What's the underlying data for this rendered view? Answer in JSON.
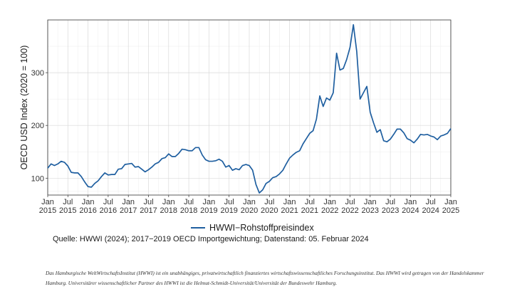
{
  "chart_data": {
    "type": "line",
    "title": "",
    "xlabel": "",
    "ylabel": "OECD USD Index (2020 = 100)",
    "xlim": [
      "2015-01",
      "2025-01"
    ],
    "ylim": [
      68,
      400
    ],
    "grid": true,
    "legend_position": "bottom",
    "yticks": [
      100,
      200,
      300
    ],
    "xticks": [
      {
        "month": "Jan",
        "year": "2015",
        "x": "2015-01"
      },
      {
        "month": "Jul",
        "year": "2015",
        "x": "2015-07"
      },
      {
        "month": "Jan",
        "year": "2016",
        "x": "2016-01"
      },
      {
        "month": "Jul",
        "year": "2016",
        "x": "2016-07"
      },
      {
        "month": "Jan",
        "year": "2017",
        "x": "2017-01"
      },
      {
        "month": "Jul",
        "year": "2017",
        "x": "2017-07"
      },
      {
        "month": "Jan",
        "year": "2018",
        "x": "2018-01"
      },
      {
        "month": "Jul",
        "year": "2018",
        "x": "2018-07"
      },
      {
        "month": "Jan",
        "year": "2019",
        "x": "2019-01"
      },
      {
        "month": "Jul",
        "year": "2019",
        "x": "2019-07"
      },
      {
        "month": "Jan",
        "year": "2020",
        "x": "2020-01"
      },
      {
        "month": "Jul",
        "year": "2020",
        "x": "2020-07"
      },
      {
        "month": "Jan",
        "year": "2021",
        "x": "2021-01"
      },
      {
        "month": "Jul",
        "year": "2021",
        "x": "2021-07"
      },
      {
        "month": "Jan",
        "year": "2022",
        "x": "2022-01"
      },
      {
        "month": "Jul",
        "year": "2022",
        "x": "2022-07"
      },
      {
        "month": "Jan",
        "year": "2023",
        "x": "2023-01"
      },
      {
        "month": "Jul",
        "year": "2023",
        "x": "2023-07"
      },
      {
        "month": "Jan",
        "year": "2024",
        "x": "2024-01"
      },
      {
        "month": "Jul",
        "year": "2024",
        "x": "2024-07"
      },
      {
        "month": "Jan",
        "year": "2025",
        "x": "2025-01"
      }
    ],
    "series": [
      {
        "name": "HWWI−Rohstoffpreisindex",
        "color": "#1f5fa0",
        "points": [
          [
            "2015-01",
            119
          ],
          [
            "2015-02",
            127
          ],
          [
            "2015-03",
            124
          ],
          [
            "2015-04",
            127
          ],
          [
            "2015-05",
            132
          ],
          [
            "2015-06",
            130
          ],
          [
            "2015-07",
            123
          ],
          [
            "2015-08",
            111
          ],
          [
            "2015-09",
            110
          ],
          [
            "2015-10",
            110
          ],
          [
            "2015-11",
            103
          ],
          [
            "2015-12",
            93
          ],
          [
            "2016-01",
            84
          ],
          [
            "2016-02",
            83
          ],
          [
            "2016-03",
            90
          ],
          [
            "2016-04",
            95
          ],
          [
            "2016-05",
            103
          ],
          [
            "2016-06",
            110
          ],
          [
            "2016-07",
            106
          ],
          [
            "2016-08",
            107
          ],
          [
            "2016-09",
            107
          ],
          [
            "2016-10",
            117
          ],
          [
            "2016-11",
            118
          ],
          [
            "2016-12",
            126
          ],
          [
            "2017-01",
            127
          ],
          [
            "2017-02",
            128
          ],
          [
            "2017-03",
            121
          ],
          [
            "2017-04",
            122
          ],
          [
            "2017-05",
            117
          ],
          [
            "2017-06",
            112
          ],
          [
            "2017-07",
            116
          ],
          [
            "2017-08",
            121
          ],
          [
            "2017-09",
            127
          ],
          [
            "2017-10",
            130
          ],
          [
            "2017-11",
            137
          ],
          [
            "2017-12",
            139
          ],
          [
            "2018-01",
            146
          ],
          [
            "2018-02",
            141
          ],
          [
            "2018-03",
            141
          ],
          [
            "2018-04",
            147
          ],
          [
            "2018-05",
            155
          ],
          [
            "2018-06",
            154
          ],
          [
            "2018-07",
            152
          ],
          [
            "2018-08",
            152
          ],
          [
            "2018-09",
            158
          ],
          [
            "2018-10",
            158
          ],
          [
            "2018-11",
            144
          ],
          [
            "2018-12",
            135
          ],
          [
            "2019-01",
            132
          ],
          [
            "2019-02",
            132
          ],
          [
            "2019-03",
            133
          ],
          [
            "2019-04",
            136
          ],
          [
            "2019-05",
            132
          ],
          [
            "2019-06",
            121
          ],
          [
            "2019-07",
            124
          ],
          [
            "2019-08",
            115
          ],
          [
            "2019-09",
            118
          ],
          [
            "2019-10",
            116
          ],
          [
            "2019-11",
            124
          ],
          [
            "2019-12",
            126
          ],
          [
            "2020-01",
            124
          ],
          [
            "2020-02",
            115
          ],
          [
            "2020-03",
            88
          ],
          [
            "2020-04",
            72
          ],
          [
            "2020-05",
            78
          ],
          [
            "2020-06",
            90
          ],
          [
            "2020-07",
            94
          ],
          [
            "2020-08",
            101
          ],
          [
            "2020-09",
            103
          ],
          [
            "2020-10",
            108
          ],
          [
            "2020-11",
            115
          ],
          [
            "2020-12",
            127
          ],
          [
            "2021-01",
            138
          ],
          [
            "2021-02",
            144
          ],
          [
            "2021-03",
            149
          ],
          [
            "2021-04",
            152
          ],
          [
            "2021-05",
            165
          ],
          [
            "2021-06",
            175
          ],
          [
            "2021-07",
            185
          ],
          [
            "2021-08",
            190
          ],
          [
            "2021-09",
            212
          ],
          [
            "2021-10",
            256
          ],
          [
            "2021-11",
            236
          ],
          [
            "2021-12",
            252
          ],
          [
            "2022-01",
            248
          ],
          [
            "2022-02",
            262
          ],
          [
            "2022-03",
            337
          ],
          [
            "2022-04",
            305
          ],
          [
            "2022-05",
            308
          ],
          [
            "2022-06",
            325
          ],
          [
            "2022-07",
            348
          ],
          [
            "2022-08",
            391
          ],
          [
            "2022-09",
            340
          ],
          [
            "2022-10",
            250
          ],
          [
            "2022-11",
            262
          ],
          [
            "2022-12",
            274
          ],
          [
            "2023-01",
            225
          ],
          [
            "2023-02",
            205
          ],
          [
            "2023-03",
            187
          ],
          [
            "2023-04",
            192
          ],
          [
            "2023-05",
            171
          ],
          [
            "2023-06",
            169
          ],
          [
            "2023-07",
            174
          ],
          [
            "2023-08",
            183
          ],
          [
            "2023-09",
            193
          ],
          [
            "2023-10",
            193
          ],
          [
            "2023-11",
            186
          ],
          [
            "2023-12",
            175
          ],
          [
            "2024-01",
            172
          ],
          [
            "2024-02",
            167
          ],
          [
            "2024-03",
            174
          ],
          [
            "2024-04",
            183
          ],
          [
            "2024-05",
            182
          ],
          [
            "2024-06",
            183
          ],
          [
            "2024-07",
            180
          ],
          [
            "2024-08",
            178
          ],
          [
            "2024-09",
            173
          ],
          [
            "2024-10",
            180
          ],
          [
            "2024-11",
            182
          ],
          [
            "2024-12",
            185
          ],
          [
            "2025-01",
            194
          ]
        ]
      }
    ]
  },
  "legend": {
    "label": "HWWI−Rohstoffpreisindex"
  },
  "source": "Quelle: HWWI (2024); 2017−2019 OECD Importgewichtung; Datenstand: 05. Februar 2024",
  "footer": "Das Hamburgische WeltWirtschaftsInstitut (HWWI) ist ein unabhängiges, privatwirtschaftlich finanziertes wirtschaftswissenschaftliches Forschungsinstitut. Das HWWI wird getragen von der Handelskammer Hamburg. Universitärer wissenschaftlicher Partner des HWWI ist die Helmut-Schmidt-Universität/Universität der Bundeswehr Hamburg."
}
